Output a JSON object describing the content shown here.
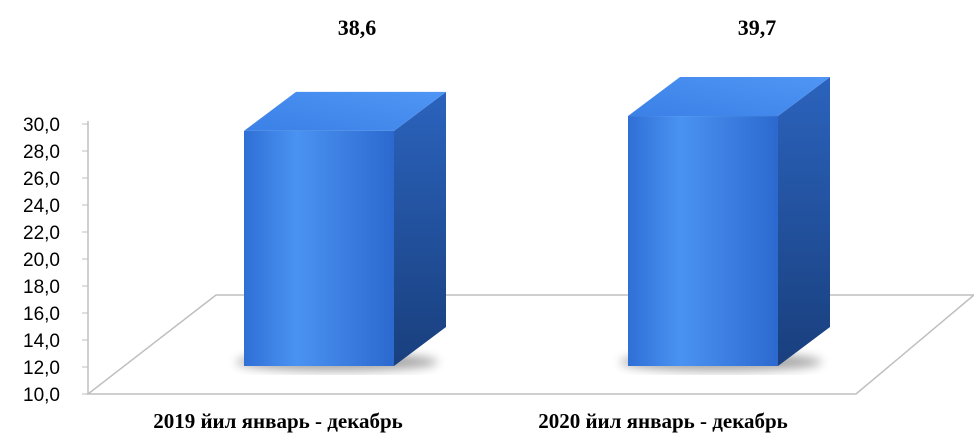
{
  "chart_data": {
    "type": "bar",
    "style": "3d-column",
    "title": "",
    "xlabel": "",
    "ylabel": "",
    "categories": [
      "2019 йил январь - декабрь",
      "2020 йил январь - декабрь"
    ],
    "values": [
      38.6,
      39.7
    ],
    "data_labels": [
      "38,6",
      "39,7"
    ],
    "ylim": [
      10.0,
      30.0
    ],
    "y_ticks": [
      "10,0",
      "12,0",
      "14,0",
      "16,0",
      "18,0",
      "20,0",
      "22,0",
      "24,0",
      "26,0",
      "28,0",
      "30,0"
    ],
    "grid": false,
    "legend": "none",
    "colors": {
      "bar": "#3a7fe0",
      "bar_side": "#1f4f9a",
      "bar_top": "#3f85ea",
      "floor_line": "#bfbfbf"
    }
  }
}
